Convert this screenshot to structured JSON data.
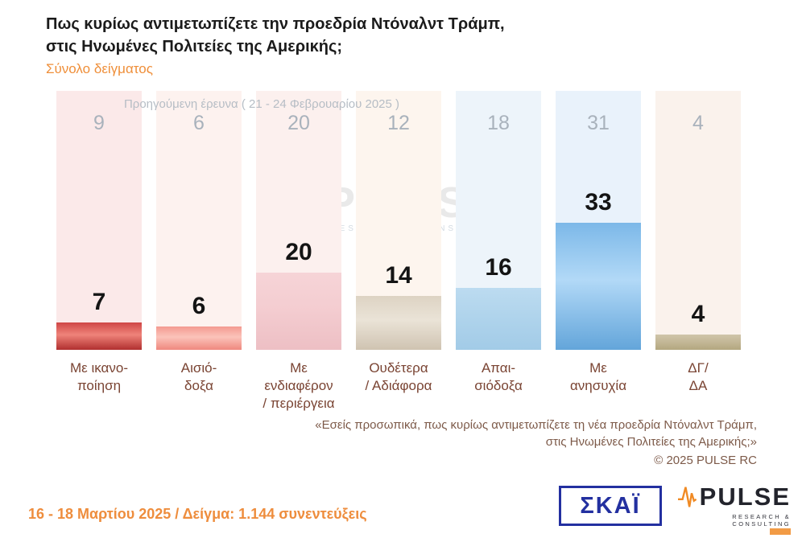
{
  "header": {
    "title_line1": "Πως κυρίως αντιμετωπίζετε την προεδρία Ντόναλντ Τράμπ,",
    "title_line2": "στις Ηνωμένες Πολιτείες της Αμερικής;",
    "subtitle": "Σύνολο δείγματος"
  },
  "chart_data": {
    "type": "bar",
    "title": "Πως κυρίως αντιμετωπίζετε την προεδρία Ντόναλντ Τράμπ, στις Ηνωμένες Πολιτείες της Αμερικής;",
    "subtitle": "Σύνολο δείγματος",
    "previous_survey_label": "Προηγούμενη έρευνα ( 21 - 24 Φεβρουαρίου 2025 )",
    "categories": [
      "Με ικανοποίηση",
      "Αισιόδοξα",
      "Με ενδιαφέρον / περιέργεια",
      "Ουδέτερα / Αδιάφορα",
      "Απαισιόδοξα",
      "Με ανησυχία",
      "ΔΓ/ΔΑ"
    ],
    "category_label_lines": [
      [
        "Με ικανο-",
        "ποίηση"
      ],
      [
        "Αισιό-",
        "δοξα"
      ],
      [
        "Με ενδιαφέρον",
        "/ περιέργεια"
      ],
      [
        "Ουδέτερα",
        "/ Αδιάφορα"
      ],
      [
        "Απαι-",
        "σιόδοξα"
      ],
      [
        "Με",
        "ανησυχία"
      ],
      [
        "ΔΓ/",
        "ΔΑ"
      ]
    ],
    "series": [
      {
        "name": "Προηγούμενη έρευνα ( 21 - 24 Φεβρουαρίου 2025 )",
        "values": [
          9,
          6,
          20,
          12,
          18,
          31,
          4
        ]
      },
      {
        "name": "16 - 18 Μαρτίου 2025",
        "values": [
          7,
          6,
          20,
          14,
          16,
          33,
          4
        ]
      }
    ],
    "ylim": [
      0,
      35
    ],
    "grid": false,
    "legend_position": "none",
    "bar_colors": [
      {
        "top": "#cf4545",
        "mid": "#ef837a",
        "bottom": "#b02f2f"
      },
      {
        "top": "#f49a90",
        "mid": "#fbc3ba",
        "bottom": "#ef887e"
      },
      {
        "top": "#f6d4d7",
        "mid": "#f4cdd1",
        "bottom": "#edbfc4"
      },
      {
        "top": "#ddd3c3",
        "mid": "#eae3d7",
        "bottom": "#cfc3b1"
      },
      {
        "top": "#bcdbf0",
        "mid": "#b0d4ec",
        "bottom": "#a2cbe7"
      },
      {
        "top": "#7cb8e8",
        "mid": "#b2d9f7",
        "bottom": "#63a5da"
      },
      {
        "top": "#cfc5a9",
        "mid": "#c4b898",
        "bottom": "#b3a77f"
      }
    ],
    "column_bg_colors": [
      "#fbe9e9",
      "#fdf2ef",
      "#fcf0ee",
      "#fdf5ee",
      "#edf4fa",
      "#e9f2fb",
      "#faf2ec"
    ]
  },
  "watermark": {
    "brand": "PULSE",
    "tagline": "RESEARCH & CONSULTING"
  },
  "footnote": {
    "line1": "«Εσείς προσωπικά, πως κυρίως αντιμετωπίζετε τη νέα προεδρία Ντόναλντ Τράμπ,",
    "line2": "στις Ηνωμένες Πολιτείες της Αμερικής;»",
    "copyright": "©  2025  PULSE RC"
  },
  "footer": {
    "date_sample": "16 - 18 Μαρτίου 2025  /  Δείγμα:  1.144 συνεντεύξεις",
    "skai_logo_text": "ΣΚΑΪ",
    "pulse_logo_text": "PULSE",
    "pulse_logo_tagline": "RESEARCH & CONSULTING"
  }
}
